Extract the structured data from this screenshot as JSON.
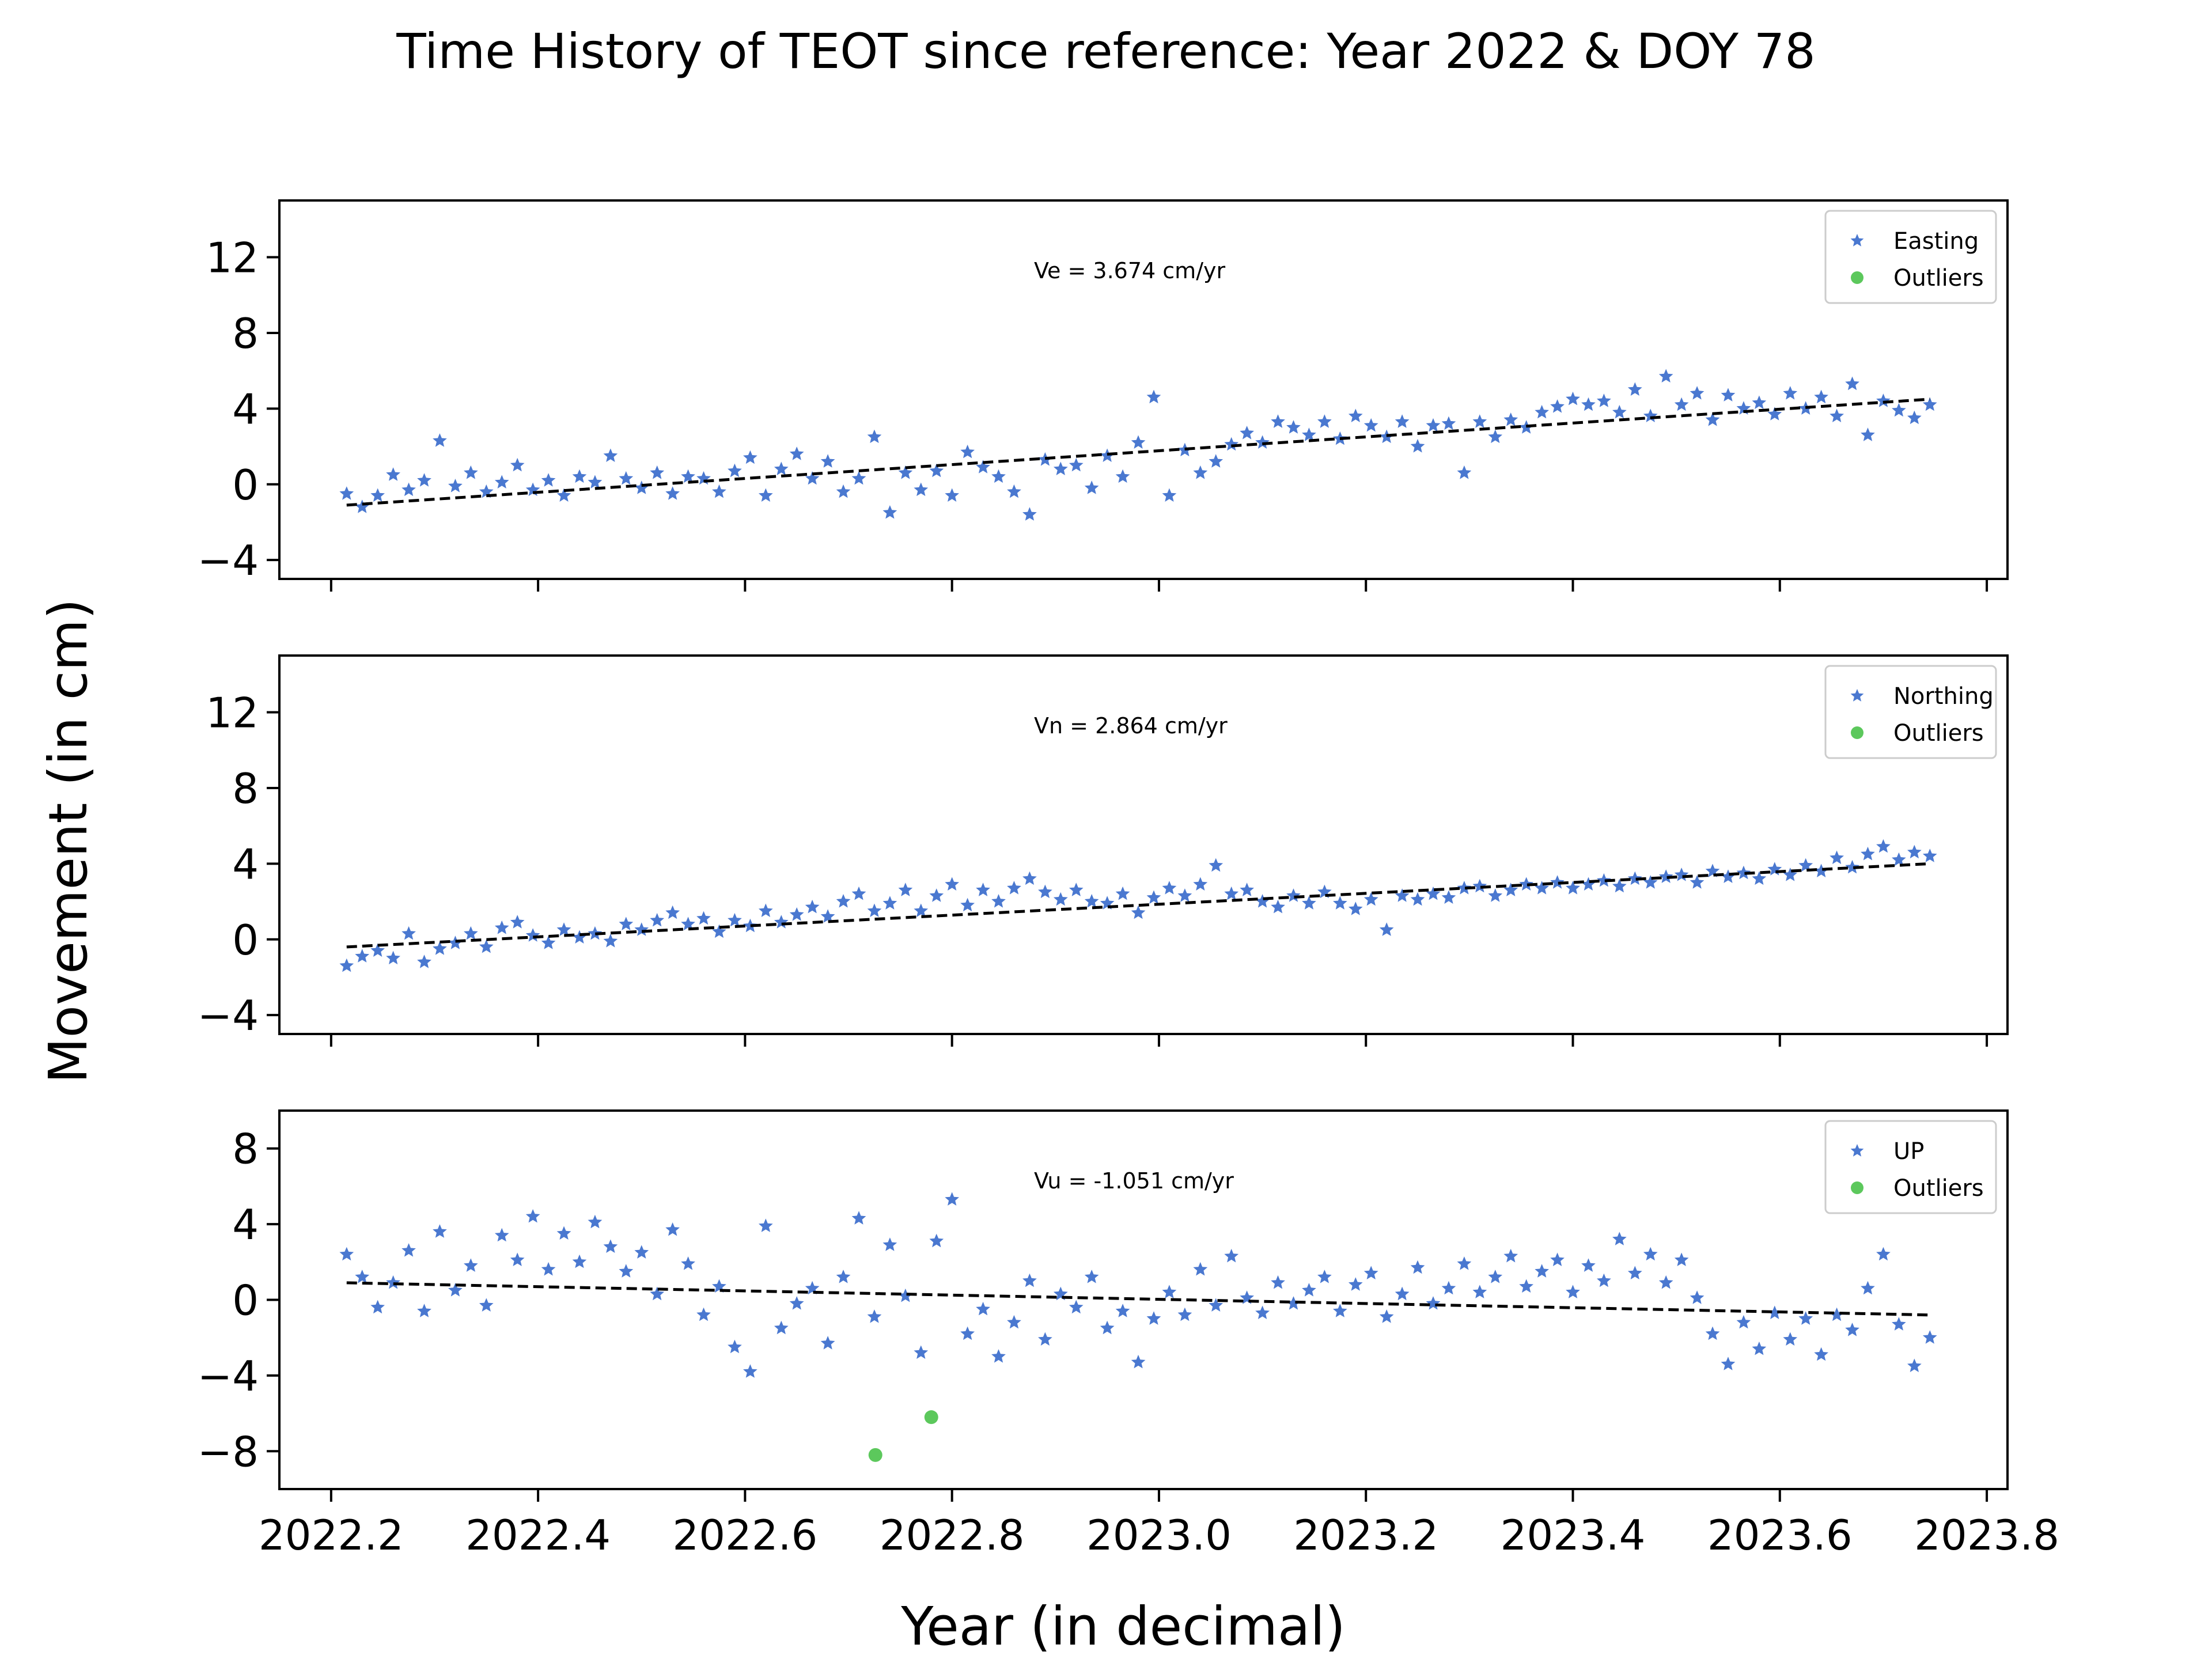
{
  "figure": {
    "title": "Time History of TEOT since reference: Year 2022 & DOY 78",
    "xlabel": "Year (in decimal)",
    "ylabel": "Movement (in cm)"
  },
  "colors": {
    "series": "#4a78d0",
    "outliers": "#5cc85c",
    "trend": "#000000"
  },
  "chart_data": [
    {
      "type": "scatter",
      "xlim": [
        2022.15,
        2023.82
      ],
      "ylim": [
        -5,
        15
      ],
      "yticks": [
        -4,
        0,
        4,
        8,
        12
      ],
      "xticks": [
        2022.2,
        2022.4,
        2022.6,
        2022.8,
        2023.0,
        2023.2,
        2023.4,
        2023.6,
        2023.8
      ],
      "show_xticklabels": false,
      "legend_position": "top-right",
      "annotation": "Ve =  3.674 cm/yr",
      "series": [
        {
          "name": "Easting",
          "marker": "star",
          "x": [
            2022.215,
            2022.23,
            2022.245,
            2022.26,
            2022.275,
            2022.29,
            2022.305,
            2022.32,
            2022.335,
            2022.35,
            2022.365,
            2022.38,
            2022.395,
            2022.41,
            2022.425,
            2022.44,
            2022.455,
            2022.47,
            2022.485,
            2022.5,
            2022.515,
            2022.53,
            2022.545,
            2022.56,
            2022.575,
            2022.59,
            2022.605,
            2022.62,
            2022.635,
            2022.65,
            2022.665,
            2022.68,
            2022.695,
            2022.71,
            2022.725,
            2022.74,
            2022.755,
            2022.77,
            2022.785,
            2022.8,
            2022.815,
            2022.83,
            2022.845,
            2022.86,
            2022.875,
            2022.89,
            2022.905,
            2022.92,
            2022.935,
            2022.95,
            2022.965,
            2022.98,
            2022.995,
            2023.01,
            2023.025,
            2023.04,
            2023.055,
            2023.07,
            2023.085,
            2023.1,
            2023.115,
            2023.13,
            2023.145,
            2023.16,
            2023.175,
            2023.19,
            2023.205,
            2023.22,
            2023.235,
            2023.25,
            2023.265,
            2023.28,
            2023.295,
            2023.31,
            2023.325,
            2023.34,
            2023.355,
            2023.37,
            2023.385,
            2023.4,
            2023.415,
            2023.43,
            2023.445,
            2023.46,
            2023.475,
            2023.49,
            2023.505,
            2023.52,
            2023.535,
            2023.55,
            2023.565,
            2023.58,
            2023.595,
            2023.61,
            2023.625,
            2023.64,
            2023.655,
            2023.67,
            2023.685,
            2023.7,
            2023.715,
            2023.73,
            2023.745
          ],
          "y": [
            -0.5,
            -1.2,
            -0.6,
            0.5,
            -0.3,
            0.2,
            2.3,
            -0.1,
            0.6,
            -0.4,
            0.1,
            1.0,
            -0.3,
            0.2,
            -0.6,
            0.4,
            0.1,
            1.5,
            0.3,
            -0.2,
            0.6,
            -0.5,
            0.4,
            0.3,
            -0.4,
            0.7,
            1.4,
            -0.6,
            0.8,
            1.6,
            0.3,
            1.2,
            -0.4,
            0.3,
            2.5,
            -1.5,
            0.6,
            -0.3,
            0.7,
            -0.6,
            1.7,
            0.9,
            0.4,
            -0.4,
            -1.6,
            1.3,
            0.8,
            1.0,
            -0.2,
            1.5,
            0.4,
            2.2,
            4.6,
            -0.6,
            1.8,
            0.6,
            1.2,
            2.1,
            2.7,
            2.2,
            3.3,
            3.0,
            2.6,
            3.3,
            2.4,
            3.6,
            3.1,
            2.5,
            3.3,
            2.0,
            3.1,
            3.2,
            0.6,
            3.3,
            2.5,
            3.4,
            3.0,
            3.8,
            4.1,
            4.5,
            4.2,
            4.4,
            3.8,
            5.0,
            3.6,
            5.7,
            4.2,
            4.8,
            3.4,
            4.7,
            4.0,
            4.3,
            3.7,
            4.8,
            4.0,
            4.6,
            3.6,
            5.3,
            2.6,
            4.4,
            3.9,
            3.5,
            4.2
          ]
        },
        {
          "name": "Outliers",
          "marker": "dot",
          "x": [],
          "y": []
        }
      ],
      "trend": {
        "x": [
          2022.215,
          2023.745
        ],
        "y": [
          -1.1,
          4.5
        ]
      }
    },
    {
      "type": "scatter",
      "xlim": [
        2022.15,
        2023.82
      ],
      "ylim": [
        -5,
        15
      ],
      "yticks": [
        -4,
        0,
        4,
        8,
        12
      ],
      "xticks": [
        2022.2,
        2022.4,
        2022.6,
        2022.8,
        2023.0,
        2023.2,
        2023.4,
        2023.6,
        2023.8
      ],
      "show_xticklabels": false,
      "legend_position": "top-right",
      "annotation": "Vn =  2.864 cm/yr",
      "series": [
        {
          "name": "Northing",
          "marker": "star",
          "x": [
            2022.215,
            2022.23,
            2022.245,
            2022.26,
            2022.275,
            2022.29,
            2022.305,
            2022.32,
            2022.335,
            2022.35,
            2022.365,
            2022.38,
            2022.395,
            2022.41,
            2022.425,
            2022.44,
            2022.455,
            2022.47,
            2022.485,
            2022.5,
            2022.515,
            2022.53,
            2022.545,
            2022.56,
            2022.575,
            2022.59,
            2022.605,
            2022.62,
            2022.635,
            2022.65,
            2022.665,
            2022.68,
            2022.695,
            2022.71,
            2022.725,
            2022.74,
            2022.755,
            2022.77,
            2022.785,
            2022.8,
            2022.815,
            2022.83,
            2022.845,
            2022.86,
            2022.875,
            2022.89,
            2022.905,
            2022.92,
            2022.935,
            2022.95,
            2022.965,
            2022.98,
            2022.995,
            2023.01,
            2023.025,
            2023.04,
            2023.055,
            2023.07,
            2023.085,
            2023.1,
            2023.115,
            2023.13,
            2023.145,
            2023.16,
            2023.175,
            2023.19,
            2023.205,
            2023.22,
            2023.235,
            2023.25,
            2023.265,
            2023.28,
            2023.295,
            2023.31,
            2023.325,
            2023.34,
            2023.355,
            2023.37,
            2023.385,
            2023.4,
            2023.415,
            2023.43,
            2023.445,
            2023.46,
            2023.475,
            2023.49,
            2023.505,
            2023.52,
            2023.535,
            2023.55,
            2023.565,
            2023.58,
            2023.595,
            2023.61,
            2023.625,
            2023.64,
            2023.655,
            2023.67,
            2023.685,
            2023.7,
            2023.715,
            2023.73,
            2023.745
          ],
          "y": [
            -1.4,
            -0.9,
            -0.6,
            -1.0,
            0.3,
            -1.2,
            -0.5,
            -0.2,
            0.3,
            -0.4,
            0.6,
            0.9,
            0.2,
            -0.2,
            0.5,
            0.1,
            0.3,
            -0.1,
            0.8,
            0.5,
            1.0,
            1.4,
            0.8,
            1.1,
            0.4,
            1.0,
            0.7,
            1.5,
            0.9,
            1.3,
            1.7,
            1.2,
            2.0,
            2.4,
            1.5,
            1.9,
            2.6,
            1.5,
            2.3,
            2.9,
            1.8,
            2.6,
            2.0,
            2.7,
            3.2,
            2.5,
            2.1,
            2.6,
            2.0,
            1.9,
            2.4,
            1.4,
            2.2,
            2.7,
            2.3,
            2.9,
            3.9,
            2.4,
            2.6,
            2.0,
            1.7,
            2.3,
            1.9,
            2.5,
            1.9,
            1.6,
            2.1,
            0.5,
            2.3,
            2.1,
            2.4,
            2.2,
            2.7,
            2.8,
            2.3,
            2.6,
            2.9,
            2.7,
            3.0,
            2.7,
            2.9,
            3.1,
            2.8,
            3.2,
            3.0,
            3.3,
            3.4,
            3.0,
            3.6,
            3.3,
            3.5,
            3.2,
            3.7,
            3.4,
            3.9,
            3.6,
            4.3,
            3.8,
            4.5,
            4.9,
            4.2,
            4.6,
            4.4
          ]
        },
        {
          "name": "Outliers",
          "marker": "dot",
          "x": [],
          "y": []
        }
      ],
      "trend": {
        "x": [
          2022.215,
          2023.745
        ],
        "y": [
          -0.4,
          4.0
        ]
      }
    },
    {
      "type": "scatter",
      "xlim": [
        2022.15,
        2023.82
      ],
      "ylim": [
        -10,
        10
      ],
      "yticks": [
        -8,
        -4,
        0,
        4,
        8
      ],
      "xticks": [
        2022.2,
        2022.4,
        2022.6,
        2022.8,
        2023.0,
        2023.2,
        2023.4,
        2023.6,
        2023.8
      ],
      "show_xticklabels": true,
      "legend_position": "top-right",
      "annotation": "Vu = -1.051 cm/yr",
      "series": [
        {
          "name": "UP",
          "marker": "star",
          "x": [
            2022.215,
            2022.23,
            2022.245,
            2022.26,
            2022.275,
            2022.29,
            2022.305,
            2022.32,
            2022.335,
            2022.35,
            2022.365,
            2022.38,
            2022.395,
            2022.41,
            2022.425,
            2022.44,
            2022.455,
            2022.47,
            2022.485,
            2022.5,
            2022.515,
            2022.53,
            2022.545,
            2022.56,
            2022.575,
            2022.59,
            2022.605,
            2022.62,
            2022.635,
            2022.65,
            2022.665,
            2022.68,
            2022.695,
            2022.71,
            2022.725,
            2022.74,
            2022.755,
            2022.77,
            2022.785,
            2022.8,
            2022.815,
            2022.83,
            2022.845,
            2022.86,
            2022.875,
            2022.89,
            2022.905,
            2022.92,
            2022.935,
            2022.95,
            2022.965,
            2022.98,
            2022.995,
            2023.01,
            2023.025,
            2023.04,
            2023.055,
            2023.07,
            2023.085,
            2023.1,
            2023.115,
            2023.13,
            2023.145,
            2023.16,
            2023.175,
            2023.19,
            2023.205,
            2023.22,
            2023.235,
            2023.25,
            2023.265,
            2023.28,
            2023.295,
            2023.31,
            2023.325,
            2023.34,
            2023.355,
            2023.37,
            2023.385,
            2023.4,
            2023.415,
            2023.43,
            2023.445,
            2023.46,
            2023.475,
            2023.49,
            2023.505,
            2023.52,
            2023.535,
            2023.55,
            2023.565,
            2023.58,
            2023.595,
            2023.61,
            2023.625,
            2023.64,
            2023.655,
            2023.67,
            2023.685,
            2023.7,
            2023.715,
            2023.73,
            2023.745
          ],
          "y": [
            2.4,
            1.2,
            -0.4,
            0.9,
            2.6,
            -0.6,
            3.6,
            0.5,
            1.8,
            -0.3,
            3.4,
            2.1,
            4.4,
            1.6,
            3.5,
            2.0,
            4.1,
            2.8,
            1.5,
            2.5,
            0.3,
            3.7,
            1.9,
            -0.8,
            0.7,
            -2.5,
            -3.8,
            3.9,
            -1.5,
            -0.2,
            0.6,
            -2.3,
            1.2,
            4.3,
            -0.9,
            2.9,
            0.2,
            -2.8,
            3.1,
            5.3,
            -1.8,
            -0.5,
            -3.0,
            -1.2,
            1.0,
            -2.1,
            0.3,
            -0.4,
            1.2,
            -1.5,
            -0.6,
            -3.3,
            -1.0,
            0.4,
            -0.8,
            1.6,
            -0.3,
            2.3,
            0.1,
            -0.7,
            0.9,
            -0.2,
            0.5,
            1.2,
            -0.6,
            0.8,
            1.4,
            -0.9,
            0.3,
            1.7,
            -0.2,
            0.6,
            1.9,
            0.4,
            1.2,
            2.3,
            0.7,
            1.5,
            2.1,
            0.4,
            1.8,
            1.0,
            3.2,
            1.4,
            2.4,
            0.9,
            2.1,
            0.1,
            -1.8,
            -3.4,
            -1.2,
            -2.6,
            -0.7,
            -2.1,
            -1.0,
            -2.9,
            -0.8,
            -1.6,
            0.6,
            2.4,
            -1.3,
            -3.5,
            -2.0
          ]
        },
        {
          "name": "Outliers",
          "marker": "dot",
          "x": [
            2022.726,
            2022.78
          ],
          "y": [
            -8.2,
            -6.2
          ]
        }
      ],
      "trend": {
        "x": [
          2022.215,
          2023.745
        ],
        "y": [
          0.9,
          -0.8
        ]
      }
    }
  ]
}
